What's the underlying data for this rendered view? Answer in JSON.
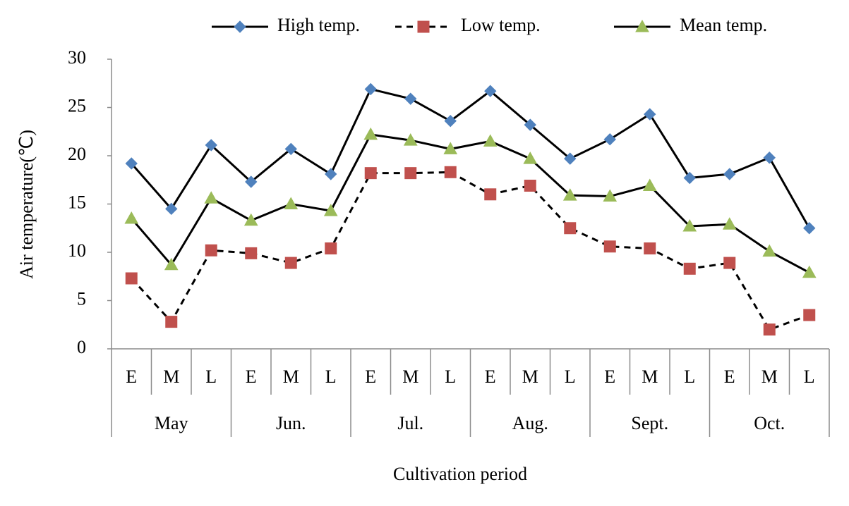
{
  "chart_data": {
    "type": "line",
    "x_label": "Cultivation period",
    "y_label": "Air temperature(℃)",
    "categories": [
      "E",
      "M",
      "L",
      "E",
      "M",
      "L",
      "E",
      "M",
      "L",
      "E",
      "M",
      "L",
      "E",
      "M",
      "L",
      "E",
      "M",
      "L"
    ],
    "category_groups": [
      "May",
      "Jun.",
      "Jul.",
      "Aug.",
      "Sept.",
      "Oct."
    ],
    "series": [
      {
        "name": "High temp.",
        "color": "#4f81bd",
        "line_color": "#000000",
        "dash": false,
        "marker": "diamond",
        "values": [
          19.2,
          14.5,
          21.1,
          17.3,
          20.7,
          18.1,
          26.9,
          25.9,
          23.6,
          26.7,
          23.2,
          19.7,
          21.7,
          24.3,
          17.7,
          18.1,
          19.8,
          12.5
        ]
      },
      {
        "name": "Low temp.",
        "color": "#c0504d",
        "line_color": "#000000",
        "dash": true,
        "marker": "square",
        "values": [
          7.3,
          2.8,
          10.2,
          9.9,
          8.9,
          10.4,
          18.2,
          18.2,
          18.3,
          16.0,
          16.9,
          12.5,
          10.6,
          10.4,
          8.3,
          8.9,
          2.0,
          3.5
        ]
      },
      {
        "name": "Mean temp.",
        "color": "#9bbb59",
        "line_color": "#000000",
        "dash": false,
        "marker": "triangle",
        "values": [
          13.5,
          8.7,
          15.6,
          13.3,
          15.0,
          14.3,
          22.2,
          21.6,
          20.7,
          21.5,
          19.7,
          15.9,
          15.8,
          16.9,
          12.7,
          12.9,
          10.1,
          7.9
        ]
      }
    ],
    "ylim": [
      0,
      30
    ],
    "yticks": [
      0,
      5,
      10,
      15,
      20,
      25,
      30
    ],
    "grid": false,
    "legend": "top"
  }
}
